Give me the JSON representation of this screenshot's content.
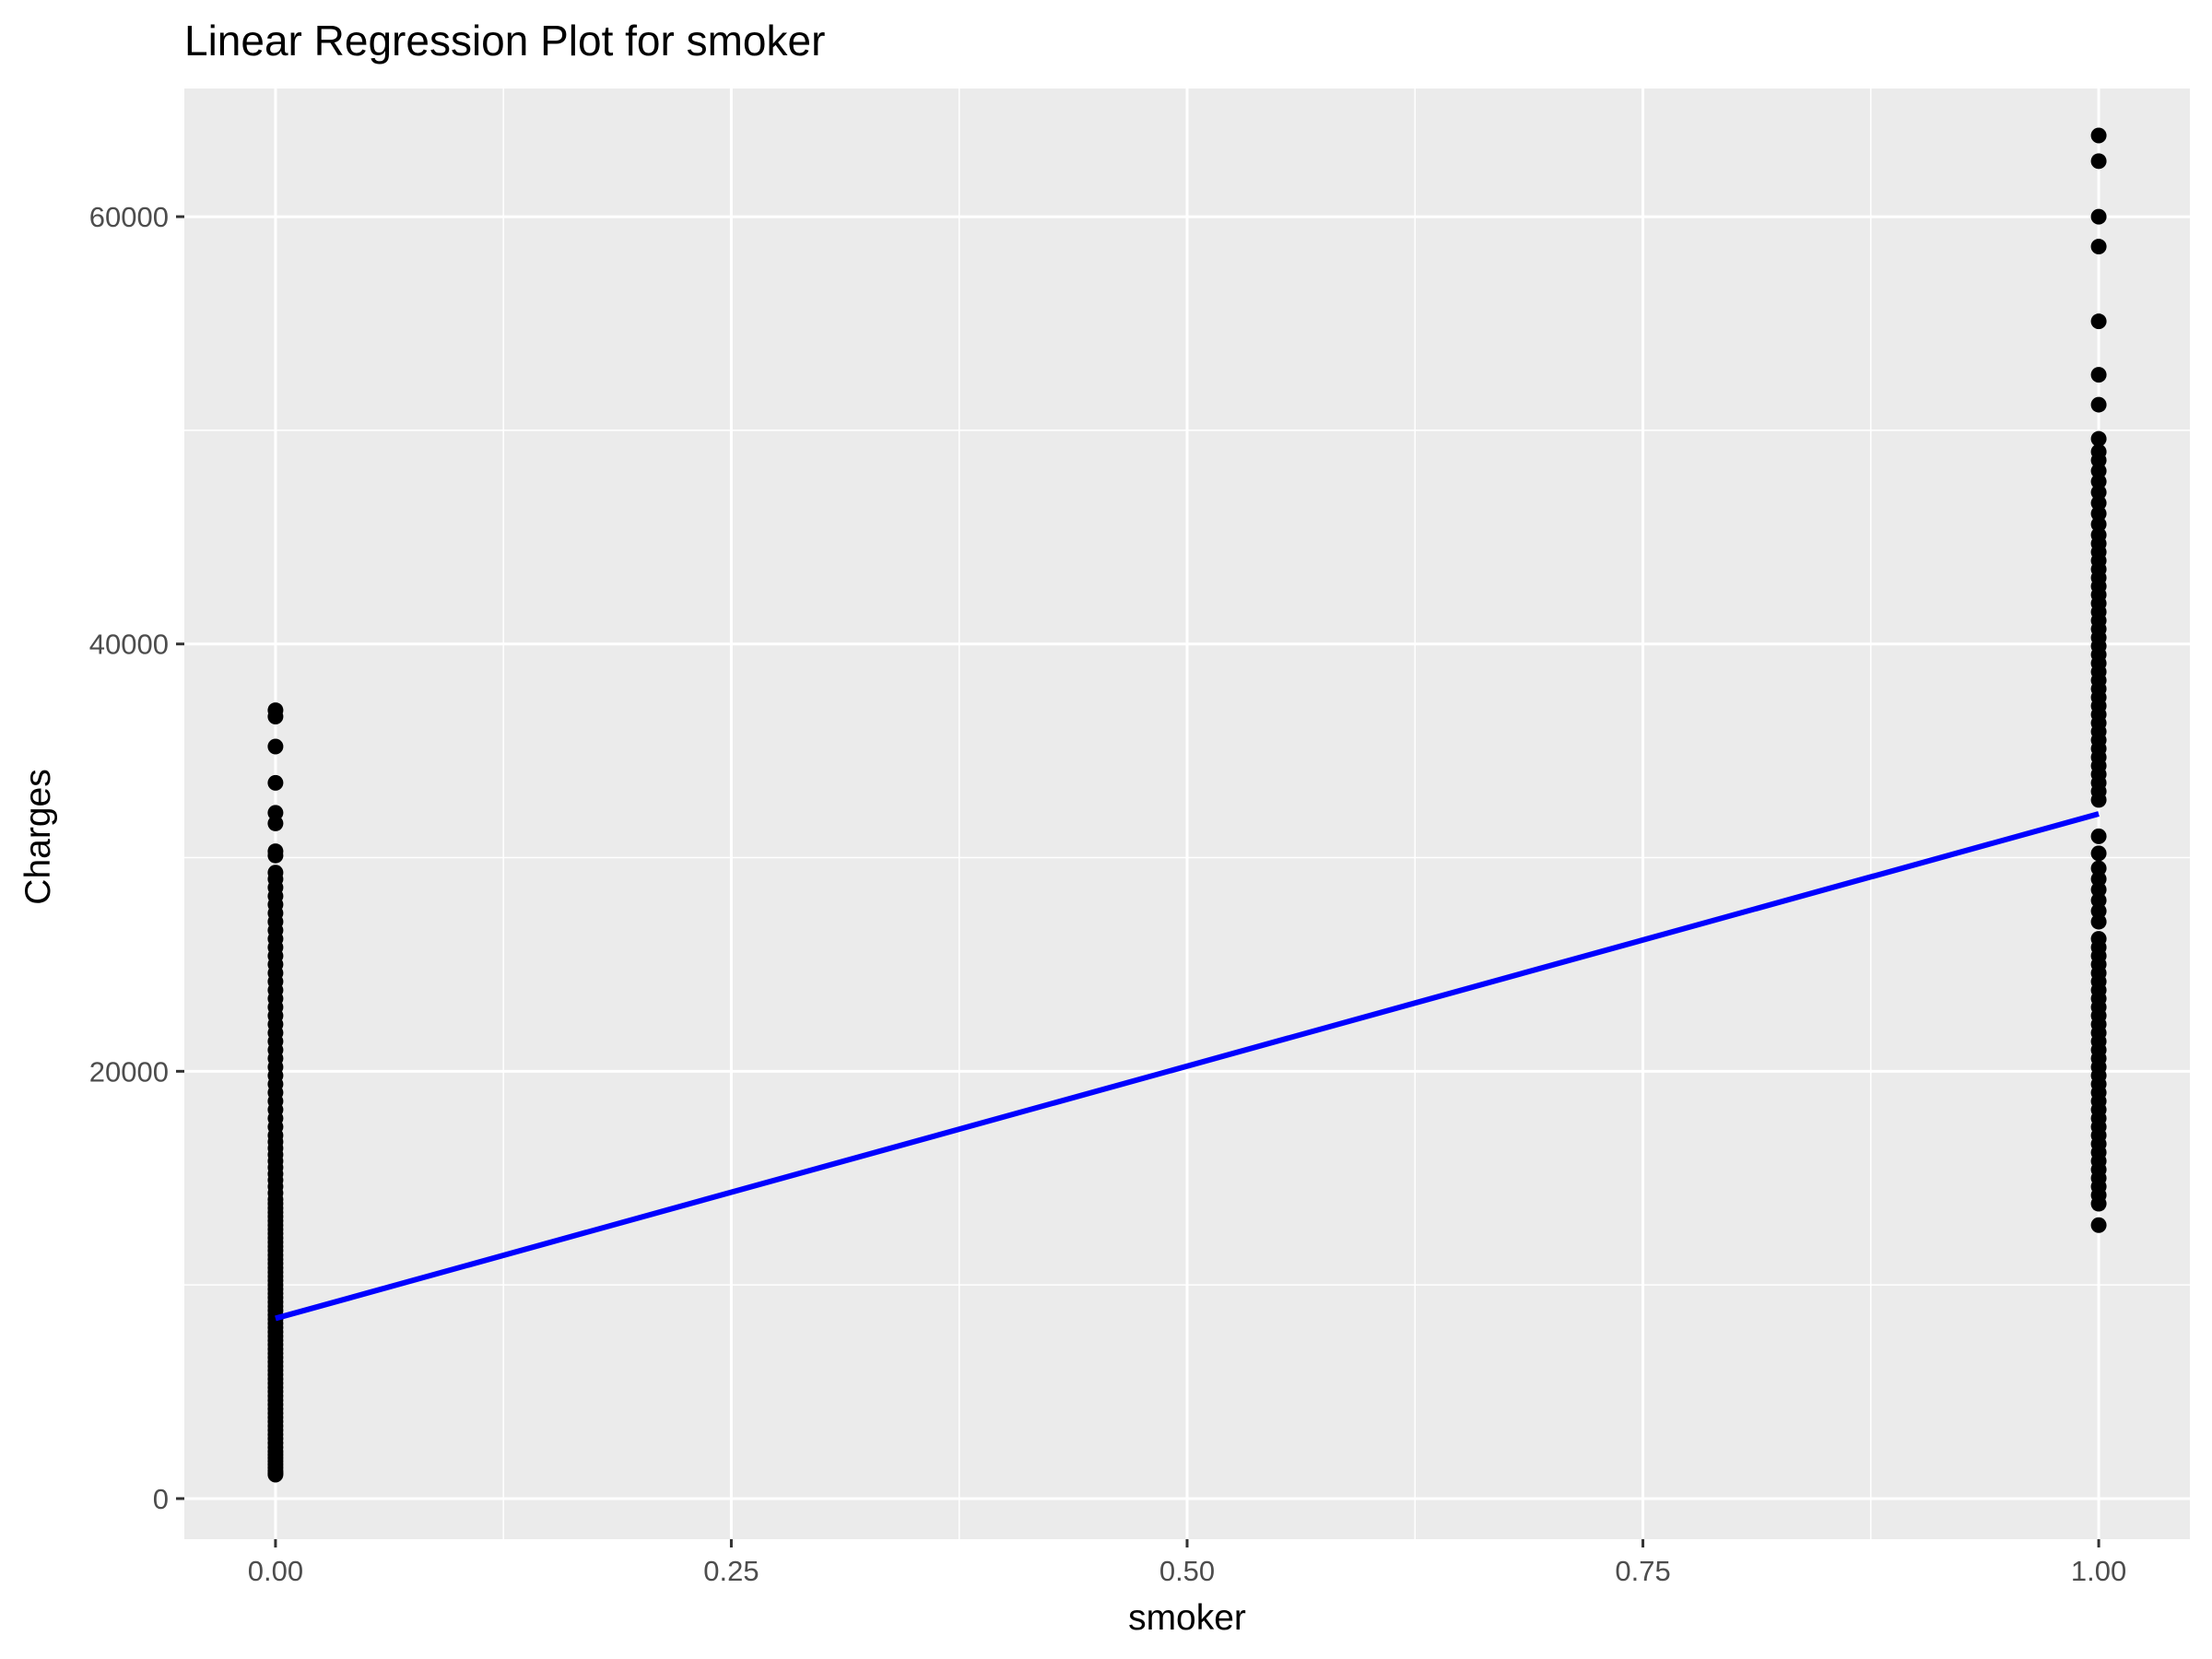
{
  "chart_data": {
    "type": "scatter",
    "title": "Linear Regression Plot for smoker",
    "xlabel": "smoker",
    "ylabel": "Charges",
    "xlim": [
      -0.05,
      1.05
    ],
    "ylim": [
      -1900,
      66000
    ],
    "x_ticks": [
      0,
      0.25,
      0.5,
      0.75,
      1
    ],
    "x_tick_labels": [
      "0.00",
      "0.25",
      "0.50",
      "0.75",
      "1.00"
    ],
    "y_ticks": [
      0,
      20000,
      40000,
      60000
    ],
    "y_tick_labels": [
      "0",
      "20000",
      "40000",
      "60000"
    ],
    "grid": true,
    "legend": "none",
    "colors": {
      "panel": "#ebebeb",
      "grid": "#ffffff",
      "points": "#000000",
      "line": "#0000ff"
    },
    "series": [
      {
        "type": "scatter",
        "x": 0,
        "y": [
          1121,
          1200,
          1300,
          1450,
          1600,
          1750,
          1900,
          2050,
          2200,
          2400,
          2600,
          2800,
          3000,
          3200,
          3400,
          3600,
          3800,
          4000,
          4200,
          4400,
          4600,
          4800,
          5000,
          5200,
          5400,
          5600,
          5800,
          6000,
          6200,
          6400,
          6600,
          6800,
          7000,
          7200,
          7400,
          7600,
          7800,
          8000,
          8200,
          8400,
          8600,
          8800,
          9000,
          9200,
          9400,
          9600,
          9800,
          10000,
          10200,
          10400,
          10600,
          10800,
          11000,
          11200,
          11400,
          11600,
          11800,
          12000,
          12200,
          12400,
          12600,
          12800,
          13000,
          13200,
          13400,
          13600,
          13800,
          14000,
          14300,
          14600,
          14900,
          15200,
          15500,
          15800,
          16100,
          16400,
          16700,
          17000,
          17400,
          17800,
          18200,
          18600,
          19000,
          19400,
          19800,
          20200,
          20600,
          21000,
          21400,
          21800,
          22200,
          22600,
          23000,
          23400,
          23800,
          24200,
          24600,
          25000,
          25400,
          25800,
          26200,
          26600,
          27000,
          27400,
          27800,
          28200,
          28600,
          29000,
          29300,
          30100,
          30300,
          31600,
          32100,
          33500,
          35200,
          36600,
          36900
        ]
      },
      {
        "type": "scatter",
        "x": 1,
        "y": [
          12800,
          13800,
          14200,
          14600,
          15000,
          15400,
          15800,
          16200,
          16600,
          17000,
          17400,
          17800,
          18200,
          18600,
          19000,
          19400,
          19800,
          20200,
          20600,
          21000,
          21400,
          21800,
          22200,
          22600,
          23000,
          23400,
          23800,
          24200,
          24600,
          25000,
          25400,
          25800,
          26200,
          27000,
          27500,
          28000,
          28500,
          29000,
          29500,
          30200,
          31000,
          32700,
          33100,
          33500,
          33900,
          34300,
          34700,
          35100,
          35500,
          35900,
          36300,
          36700,
          37100,
          37500,
          37900,
          38300,
          38700,
          39100,
          39500,
          39900,
          40300,
          40700,
          41100,
          41500,
          41900,
          42300,
          42700,
          43100,
          43500,
          43900,
          44300,
          44700,
          45100,
          45600,
          46100,
          46600,
          47100,
          47600,
          48100,
          48600,
          49000,
          49600,
          51200,
          52600,
          55100,
          58600,
          60000,
          62600,
          63800
        ]
      },
      {
        "type": "line",
        "name": "",
        "x": [
          0,
          1
        ],
        "y": [
          8434,
          32050
        ]
      }
    ]
  }
}
